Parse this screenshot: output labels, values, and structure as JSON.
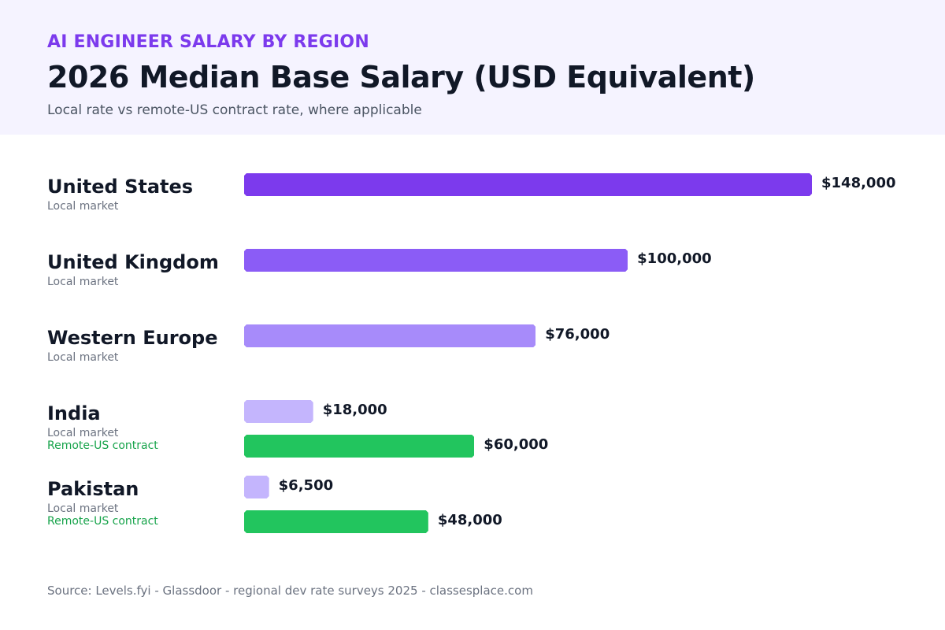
{
  "header": {
    "eyebrow": "AI ENGINEER SALARY BY REGION",
    "title": "2026 Median Base Salary (USD Equivalent)",
    "subtitle": "Local rate vs remote-US contract rate, where applicable"
  },
  "colors": {
    "united_states": "#7c3aed",
    "united_kingdom": "#8b5cf6",
    "western_europe": "#a78bfa",
    "local_light": "#c4b5fd",
    "remote": "#22c55e"
  },
  "chart_data": {
    "type": "bar",
    "orientation": "horizontal",
    "title": "2026 Median Base Salary (USD Equivalent)",
    "subtitle": "Local rate vs remote-US contract rate, where applicable",
    "xlim": [
      0,
      148000
    ],
    "grid": false,
    "regions": [
      {
        "name": "United States",
        "bars": [
          {
            "label": "Local market",
            "value": 148000,
            "value_label": "$148,000",
            "color": "#7c3aed"
          }
        ]
      },
      {
        "name": "United Kingdom",
        "bars": [
          {
            "label": "Local market",
            "value": 100000,
            "value_label": "$100,000",
            "color": "#8b5cf6"
          }
        ]
      },
      {
        "name": "Western Europe",
        "bars": [
          {
            "label": "Local market",
            "value": 76000,
            "value_label": "$76,000",
            "color": "#a78bfa"
          }
        ]
      },
      {
        "name": "India",
        "bars": [
          {
            "label": "Local market",
            "value": 18000,
            "value_label": "$18,000",
            "color": "#c4b5fd"
          },
          {
            "label": "Remote-US contract",
            "value": 60000,
            "value_label": "$60,000",
            "color": "#22c55e"
          }
        ]
      },
      {
        "name": "Pakistan",
        "bars": [
          {
            "label": "Local market",
            "value": 6500,
            "value_label": "$6,500",
            "color": "#c4b5fd"
          },
          {
            "label": "Remote-US contract",
            "value": 48000,
            "value_label": "$48,000",
            "color": "#22c55e"
          }
        ]
      }
    ]
  },
  "footer": {
    "source": "Source: Levels.fyi - Glassdoor - regional dev rate surveys 2025  -  classesplace.com"
  }
}
